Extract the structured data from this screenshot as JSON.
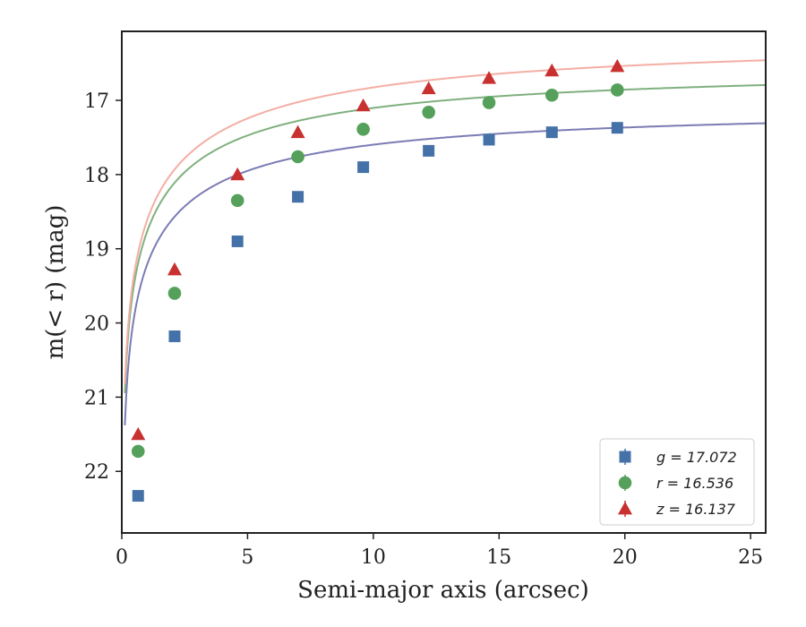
{
  "chart_data": {
    "type": "scatter",
    "title": "",
    "xlabel": "Semi-major axis (arcsec)",
    "ylabel": "m(< r) (mag)",
    "xlim": [
      0,
      25.6
    ],
    "ylim": [
      22.83,
      16.07
    ],
    "y_inverted": true,
    "x_ticks": [
      0,
      5,
      10,
      15,
      20,
      25
    ],
    "y_ticks": [
      17,
      18,
      19,
      20,
      21,
      22
    ],
    "grid": false,
    "legend_position": "lower-right",
    "x": [
      0.65,
      2.1,
      4.6,
      7.0,
      9.6,
      12.2,
      14.6,
      17.1,
      19.7
    ],
    "series": [
      {
        "name": "g",
        "legend_label": "g = 17.072",
        "marker": "square",
        "color": "#4472a8",
        "curve_color": "#7b7bb5",
        "asymptote": 17.072,
        "values": [
          22.33,
          20.18,
          18.9,
          18.3,
          17.9,
          17.68,
          17.53,
          17.43,
          17.37
        ]
      },
      {
        "name": "r",
        "legend_label": "r = 16.536",
        "marker": "circle",
        "color": "#55a05a",
        "curve_color": "#7fb07f",
        "asymptote": 16.536,
        "values": [
          21.73,
          19.6,
          18.35,
          17.76,
          17.39,
          17.16,
          17.03,
          16.93,
          16.86
        ]
      },
      {
        "name": "z",
        "legend_label": "z = 16.137",
        "marker": "triangle",
        "color": "#c93030",
        "curve_color": "#f4aea4",
        "asymptote": 16.137,
        "values": [
          21.5,
          19.28,
          18.0,
          17.43,
          17.07,
          16.84,
          16.7,
          16.6,
          16.54
        ]
      }
    ]
  }
}
